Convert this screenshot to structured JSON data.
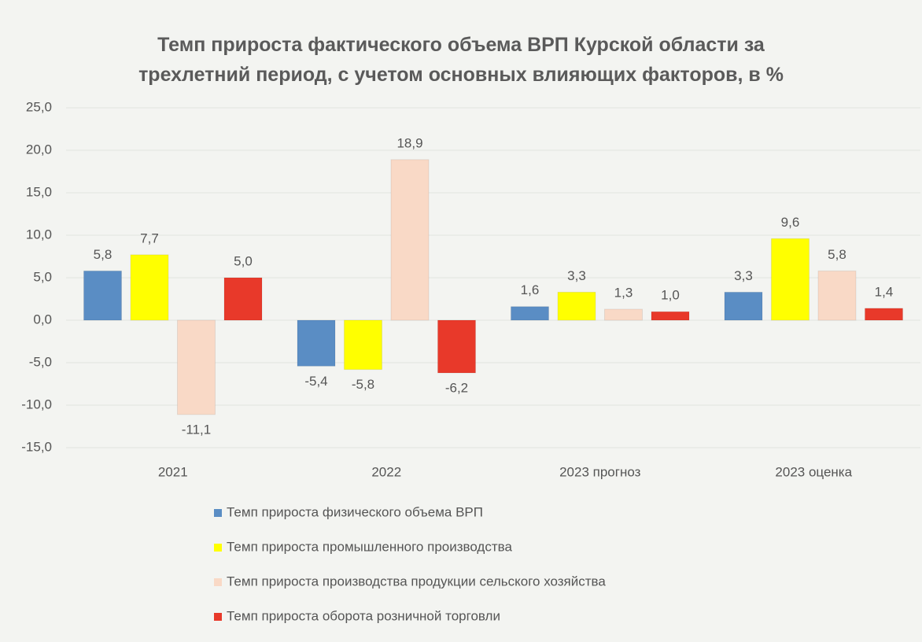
{
  "chart_data": {
    "type": "bar",
    "title": "Темп прироста фактического объема ВРП Курской области за трехлетний период, с учетом основных влияющих факторов, в %",
    "categories": [
      "2021",
      "2022",
      "2023 прогноз",
      "2023 оценка"
    ],
    "series": [
      {
        "name": "Темп прироста физического объема ВРП",
        "color": "#5a8dc4",
        "values": [
          5.8,
          -5.4,
          1.6,
          3.3
        ],
        "value_labels": [
          "5,8",
          "-5,4",
          "1,6",
          "3,3"
        ]
      },
      {
        "name": "Темп прироста промышленного производства",
        "color": "#ffff00",
        "values": [
          7.7,
          -5.8,
          3.3,
          9.6
        ],
        "value_labels": [
          "7,7",
          "-5,8",
          "3,3",
          "9,6"
        ]
      },
      {
        "name": "Темп прироста производства продукции сельского хозяйства",
        "color": "#f9d9c6",
        "values": [
          -11.1,
          18.9,
          1.3,
          5.8
        ],
        "value_labels": [
          "-11,1",
          "18,9",
          "1,3",
          "5,8"
        ]
      },
      {
        "name": "Темп прироста оборота розничной торговли",
        "color": "#e8392a",
        "values": [
          5.0,
          -6.2,
          1.0,
          1.4
        ],
        "value_labels": [
          "5,0",
          "-6,2",
          "1,0",
          "1,4"
        ]
      }
    ],
    "ylim": [
      -15,
      25
    ],
    "yticks": [
      {
        "value": -15,
        "label": "-15,0"
      },
      {
        "value": -10,
        "label": "-10,0"
      },
      {
        "value": -5,
        "label": "-5,0"
      },
      {
        "value": 0,
        "label": "0,0"
      },
      {
        "value": 5,
        "label": "5,0"
      },
      {
        "value": 10,
        "label": "10,0"
      },
      {
        "value": 15,
        "label": "15,0"
      },
      {
        "value": 20,
        "label": "20,0"
      },
      {
        "value": 25,
        "label": "25,0"
      }
    ],
    "grid": true,
    "legend": "bottom"
  }
}
